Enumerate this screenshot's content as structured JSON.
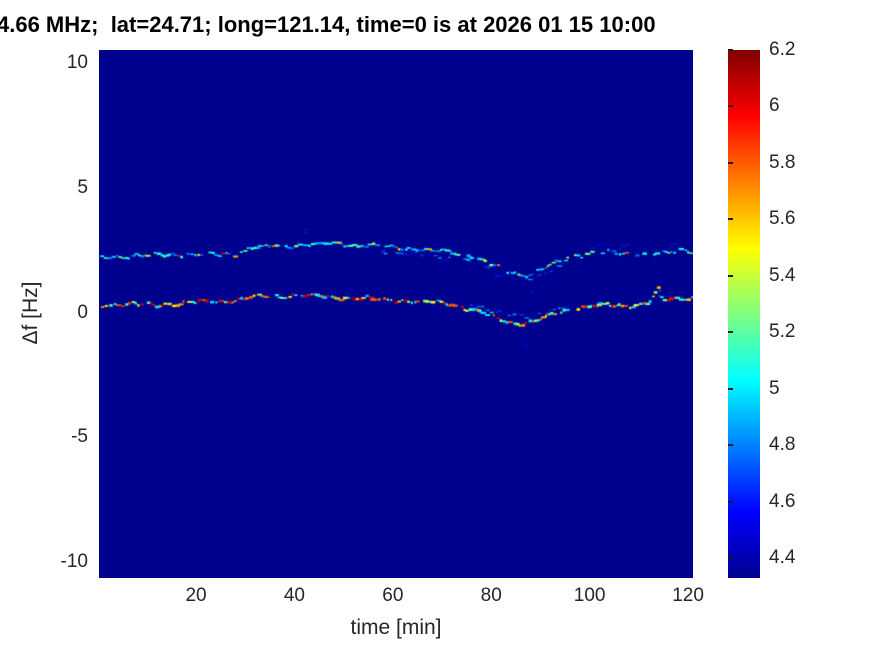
{
  "chart_data": {
    "type": "heatmap",
    "title": "4.66 MHz;  lat=24.71; long=121.14, time=0 is at 2026 01 15 10:00",
    "xlabel": "time [min]",
    "ylabel": "Δf [Hz]",
    "xlim": [
      0.28,
      121.0
    ],
    "ylim": [
      -10.64,
      10.52
    ],
    "x_ticks": [
      20,
      40,
      60,
      80,
      100,
      120
    ],
    "y_ticks": [
      10,
      5,
      0,
      -5,
      -10
    ],
    "grid": false,
    "colormap": "jet",
    "colorbar": {
      "position": "right",
      "range": [
        4.33,
        6.2
      ],
      "ticks": [
        4.4,
        4.6,
        4.8,
        5,
        5.2,
        5.4,
        5.6,
        5.8,
        6,
        6.2
      ]
    },
    "colors": {
      "figure_background": "#ffffff",
      "plot_background": "#00008f",
      "tick_label": "#262626",
      "title": "#000000",
      "jet_stops": [
        "#00008f",
        "#0000ff",
        "#00ffff",
        "#80ff80",
        "#ffff00",
        "#ff8000",
        "#ff0000",
        "#800000"
      ]
    },
    "series": [
      {
        "name": "upper-doppler-trace",
        "points": [
          [
            0.3,
            2.2
          ],
          [
            6,
            2.25
          ],
          [
            12,
            2.3
          ],
          [
            18,
            2.32
          ],
          [
            24,
            2.3
          ],
          [
            29,
            2.38
          ],
          [
            31,
            2.58
          ],
          [
            36,
            2.65
          ],
          [
            42,
            2.72
          ],
          [
            48,
            2.75
          ],
          [
            54,
            2.7
          ],
          [
            60,
            2.6
          ],
          [
            66,
            2.52
          ],
          [
            72,
            2.42
          ],
          [
            76,
            2.25
          ],
          [
            80,
            1.95
          ],
          [
            83,
            1.65
          ],
          [
            86,
            1.5
          ],
          [
            89,
            1.62
          ],
          [
            92,
            1.88
          ],
          [
            95,
            2.12
          ],
          [
            98,
            2.3
          ],
          [
            101,
            2.42
          ],
          [
            104,
            2.42
          ],
          [
            107,
            2.3
          ],
          [
            110,
            2.35
          ],
          [
            113,
            2.42
          ],
          [
            116,
            2.38
          ],
          [
            118,
            2.45
          ],
          [
            121,
            2.4
          ]
        ],
        "value_levels": [
          [
            4.8,
            2.5
          ],
          [
            4.95,
            3
          ],
          [
            5.05,
            3
          ],
          [
            5.15,
            2
          ],
          [
            5.3,
            1.2
          ],
          [
            5.45,
            0.8
          ],
          [
            5.6,
            0.5
          ],
          [
            5.8,
            0.35
          ],
          [
            6.0,
            0.25
          ]
        ],
        "gap": 0.15,
        "gap_late": 0.32,
        "late_t": 95,
        "dash_h": 1.9,
        "faint": false
      },
      {
        "name": "lower-doppler-trace",
        "points": [
          [
            0.3,
            0.3
          ],
          [
            6,
            0.32
          ],
          [
            12,
            0.3
          ],
          [
            18,
            0.38
          ],
          [
            24,
            0.45
          ],
          [
            28,
            0.5
          ],
          [
            32,
            0.6
          ],
          [
            36,
            0.65
          ],
          [
            40,
            0.68
          ],
          [
            44,
            0.66
          ],
          [
            48,
            0.6
          ],
          [
            52,
            0.56
          ],
          [
            56,
            0.54
          ],
          [
            60,
            0.5
          ],
          [
            64,
            0.46
          ],
          [
            68,
            0.4
          ],
          [
            72,
            0.34
          ],
          [
            76,
            0.12
          ],
          [
            80,
            -0.15
          ],
          [
            83,
            -0.35
          ],
          [
            86,
            -0.46
          ],
          [
            89,
            -0.34
          ],
          [
            92,
            -0.12
          ],
          [
            95,
            0.06
          ],
          [
            98,
            0.2
          ],
          [
            101,
            0.28
          ],
          [
            104,
            0.3
          ],
          [
            107,
            0.26
          ],
          [
            110,
            0.3
          ],
          [
            112,
            0.42
          ],
          [
            114,
            0.88
          ],
          [
            115,
            0.5
          ],
          [
            117,
            0.5
          ],
          [
            119,
            0.55
          ],
          [
            121,
            0.6
          ]
        ],
        "value_levels": [
          [
            4.95,
            1.2
          ],
          [
            5.05,
            1.5
          ],
          [
            5.2,
            1.5
          ],
          [
            5.35,
            1.2
          ],
          [
            5.5,
            1.3
          ],
          [
            5.65,
            1.5
          ],
          [
            5.8,
            1.8
          ],
          [
            5.95,
            1.8
          ],
          [
            6.1,
            1.2
          ]
        ],
        "gap": 0.12,
        "gap_late": 0.12,
        "late_t": 200,
        "dash_h": 2.2,
        "faint": false
      },
      {
        "name": "upper-echo-trace",
        "points": [
          [
            58,
            2.45
          ],
          [
            64,
            2.32
          ],
          [
            70,
            2.22
          ],
          [
            74,
            2.15
          ],
          [
            78,
            1.88
          ],
          [
            82,
            1.5
          ],
          [
            85,
            1.32
          ],
          [
            88,
            1.32
          ],
          [
            91,
            1.55
          ],
          [
            94,
            1.9
          ]
        ],
        "value_levels": [
          [
            4.55,
            1
          ],
          [
            4.7,
            1.5
          ],
          [
            4.85,
            1.5
          ],
          [
            5.0,
            0.8
          ]
        ],
        "gap": 0.4,
        "gap_late": 0.4,
        "late_t": 200,
        "dash_h": 1.5,
        "faint": true
      },
      {
        "name": "lower-echo-trace",
        "points": [
          [
            76,
            0.3
          ],
          [
            80,
            0.1
          ],
          [
            84,
            -0.1
          ],
          [
            87,
            -0.22
          ],
          [
            90,
            -0.06
          ],
          [
            93,
            0.15
          ],
          [
            96,
            0.3
          ]
        ],
        "value_levels": [
          [
            4.55,
            1
          ],
          [
            4.7,
            1.5
          ],
          [
            4.85,
            1.5
          ],
          [
            5.0,
            0.8
          ]
        ],
        "gap": 0.38,
        "gap_late": 0.38,
        "late_t": 200,
        "dash_h": 1.5,
        "faint": true
      }
    ],
    "artifacts": [
      {
        "t1": 40.5,
        "f1": 2.8,
        "t2": 42.5,
        "f2": 3.45,
        "v": 4.75
      },
      {
        "t1": 86.5,
        "f1": -0.7,
        "t2": 87.2,
        "f2": -1.6,
        "v": 4.6
      },
      {
        "t1": 88.0,
        "f1": 0.8,
        "t2": 88.5,
        "f2": 1.05,
        "v": 4.6
      },
      {
        "t1": 113.8,
        "f1": 0.62,
        "t2": 114.2,
        "f2": 1.12,
        "v": 5.1
      },
      {
        "t1": 106,
        "f1": 2.6,
        "t2": 109,
        "f2": 2.85,
        "v": 4.7
      },
      {
        "t1": 115.5,
        "f1": 2.55,
        "t2": 117.5,
        "f2": 2.8,
        "v": 4.65
      },
      {
        "t1": 100,
        "f1": 2.6,
        "t2": 103,
        "f2": 2.75,
        "v": 4.6
      }
    ]
  }
}
